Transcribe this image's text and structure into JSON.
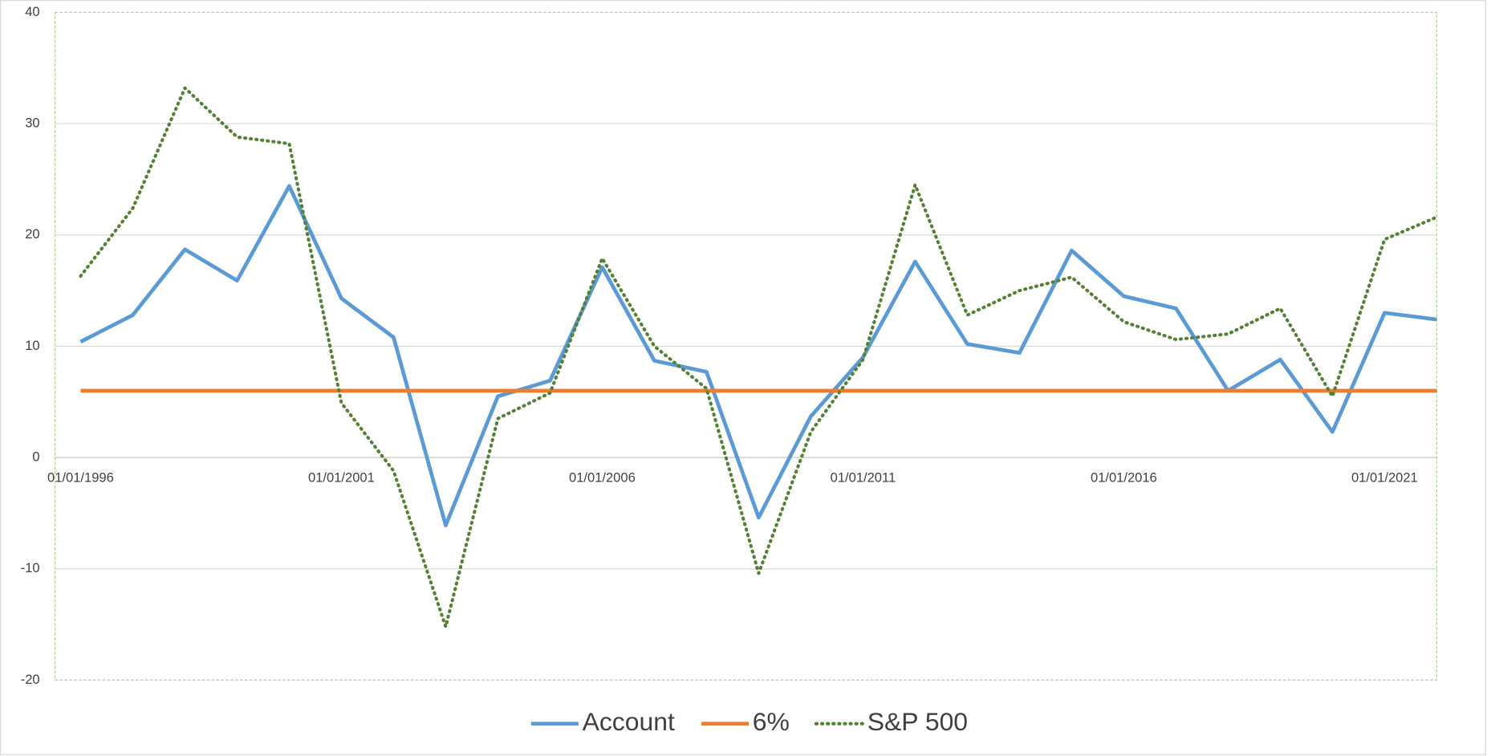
{
  "chart_data": {
    "type": "line",
    "x": [
      "01/01/1996",
      "01/01/1997",
      "01/01/1998",
      "01/01/1999",
      "01/01/2000",
      "01/01/2001",
      "01/01/2002",
      "01/01/2003",
      "01/01/2004",
      "01/01/2005",
      "01/01/2006",
      "01/01/2007",
      "01/01/2008",
      "01/01/2009",
      "01/01/2010",
      "01/01/2011",
      "01/01/2012",
      "01/01/2013",
      "01/01/2014",
      "01/01/2015",
      "01/01/2016",
      "01/01/2017",
      "01/01/2018",
      "01/01/2019",
      "01/01/2020",
      "01/01/2021",
      "01/01/2022"
    ],
    "series": [
      {
        "name": "Account",
        "color": "#5b9bd5",
        "style": "solid",
        "values": [
          10.4,
          12.8,
          18.7,
          15.9,
          24.4,
          14.3,
          10.8,
          -6.1,
          5.5,
          6.9,
          17.1,
          8.7,
          7.7,
          -5.4,
          3.7,
          9.0,
          17.6,
          10.2,
          9.4,
          18.6,
          14.5,
          13.4,
          6.0,
          8.8,
          2.3,
          13.0,
          12.4
        ]
      },
      {
        "name": "6%",
        "color": "#ed7d31",
        "style": "solid",
        "values": [
          6,
          6,
          6,
          6,
          6,
          6,
          6,
          6,
          6,
          6,
          6,
          6,
          6,
          6,
          6,
          6,
          6,
          6,
          6,
          6,
          6,
          6,
          6,
          6,
          6,
          6,
          6
        ]
      },
      {
        "name": "S&P 500",
        "color": "#548235",
        "style": "dotted",
        "values": [
          16.3,
          22.4,
          33.2,
          28.8,
          28.2,
          4.9,
          -1.2,
          -15.2,
          3.5,
          5.8,
          17.9,
          10.0,
          6.2,
          -10.4,
          2.3,
          8.8,
          24.5,
          12.8,
          15.0,
          16.2,
          12.2,
          10.6,
          11.1,
          13.4,
          5.5,
          19.6,
          21.6
        ]
      }
    ],
    "xticks": [
      "01/01/1996",
      "01/01/2001",
      "01/01/2006",
      "01/01/2011",
      "01/01/2016",
      "01/01/2021"
    ],
    "ylim": [
      -20,
      40
    ],
    "yticks": [
      -20,
      -10,
      0,
      10,
      20,
      30,
      40
    ],
    "grid": true,
    "legend": "bottom"
  }
}
